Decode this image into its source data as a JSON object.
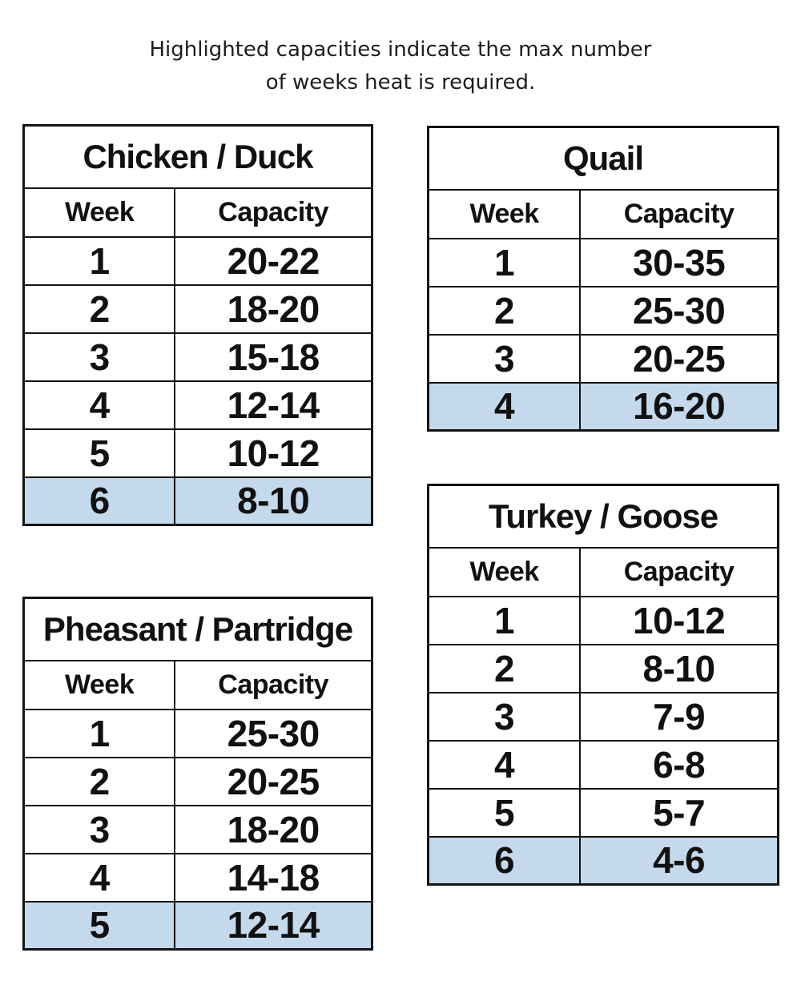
{
  "note": "Highlighted capacities indicate the max number of weeks heat is required.",
  "columns": [
    "Week",
    "Capacity"
  ],
  "colors": {
    "highlight": "#C5D9EC",
    "border": "#141414",
    "text": "#111111",
    "background": "#FFFFFF"
  },
  "tables": [
    {
      "title": "Chicken / Duck",
      "highlight_row_index": 5,
      "rows": [
        [
          "1",
          "20-22"
        ],
        [
          "2",
          "18-20"
        ],
        [
          "3",
          "15-18"
        ],
        [
          "4",
          "12-14"
        ],
        [
          "5",
          "10-12"
        ],
        [
          "6",
          "8-10"
        ]
      ]
    },
    {
      "title": "Quail",
      "highlight_row_index": 3,
      "rows": [
        [
          "1",
          "30-35"
        ],
        [
          "2",
          "25-30"
        ],
        [
          "3",
          "20-25"
        ],
        [
          "4",
          "16-20"
        ]
      ]
    },
    {
      "title": "Pheasant / Partridge",
      "highlight_row_index": 4,
      "rows": [
        [
          "1",
          "25-30"
        ],
        [
          "2",
          "20-25"
        ],
        [
          "3",
          "18-20"
        ],
        [
          "4",
          "14-18"
        ],
        [
          "5",
          "12-14"
        ]
      ]
    },
    {
      "title": "Turkey / Goose",
      "highlight_row_index": 5,
      "rows": [
        [
          "1",
          "10-12"
        ],
        [
          "2",
          "8-10"
        ],
        [
          "3",
          "7-9"
        ],
        [
          "4",
          "6-8"
        ],
        [
          "5",
          "5-7"
        ],
        [
          "6",
          "4-6"
        ]
      ]
    }
  ]
}
